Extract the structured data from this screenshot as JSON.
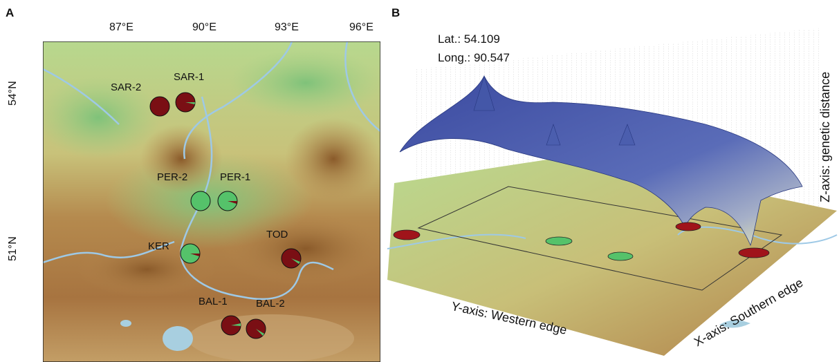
{
  "panels": {
    "a": {
      "letter": "A"
    },
    "b": {
      "letter": "B"
    }
  },
  "map_a": {
    "lon_ticks": [
      "87°E",
      "90°E",
      "93°E",
      "96°E"
    ],
    "lat_ticks": [
      "54°N",
      "51°N"
    ],
    "sites": [
      {
        "name": "SAR-2",
        "group": "red"
      },
      {
        "name": "SAR-1",
        "group": "red"
      },
      {
        "name": "PER-2",
        "group": "green"
      },
      {
        "name": "PER-1",
        "group": "green"
      },
      {
        "name": "KER",
        "group": "green"
      },
      {
        "name": "TOD",
        "group": "red"
      },
      {
        "name": "BAL-1",
        "group": "red"
      },
      {
        "name": "BAL-2",
        "group": "red"
      }
    ],
    "colors": {
      "red": "#7a0f14",
      "green": "#55c26a",
      "river": "#9ec9e6",
      "lake": "#a8cfe0"
    }
  },
  "panel_b": {
    "lat_line": "Lat.: 54.109",
    "long_line": "Long.: 90.547",
    "z_axis": "Z-axis: genetic distance",
    "y_axis": "Y-axis: Western edge",
    "x_axis": "X-axis: Southern edge",
    "colors": {
      "surface_high": "#3b4aa0",
      "surface_low": "#f0f0b0"
    }
  }
}
